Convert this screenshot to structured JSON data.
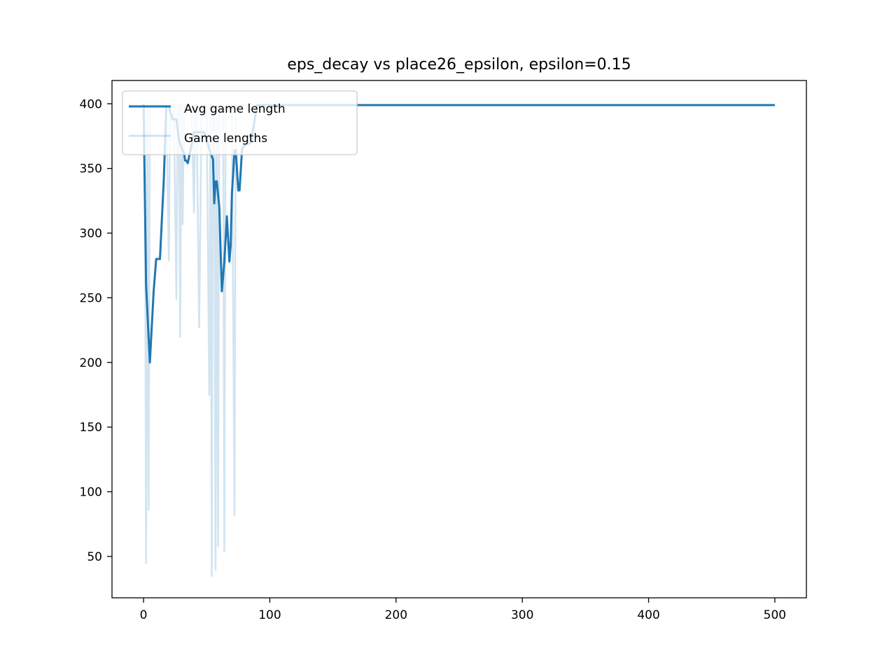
{
  "chart_data": {
    "type": "line",
    "title": "eps_decay vs place26_epsilon, epsilon=0.15",
    "xlabel": "",
    "ylabel": "",
    "xlim": [
      -25,
      525
    ],
    "ylim": [
      18,
      418
    ],
    "x_ticks": [
      0,
      100,
      200,
      300,
      400,
      500
    ],
    "y_ticks": [
      50,
      100,
      150,
      200,
      250,
      300,
      350,
      400
    ],
    "grid": false,
    "legend_position": "upper-left",
    "colors": {
      "avg": "#1f77b4",
      "lengths": "#1f77b4"
    },
    "series": [
      {
        "name": "Avg game length",
        "x": [
          0,
          2,
          5,
          8,
          10,
          13,
          16,
          18,
          20,
          23,
          26,
          28,
          30,
          32,
          33,
          34,
          35,
          38,
          40,
          42,
          45,
          48,
          50,
          53,
          55,
          56,
          57,
          58,
          60,
          62,
          64,
          66,
          68,
          69,
          70,
          72,
          73,
          75,
          76,
          78,
          80,
          85,
          90,
          500
        ],
        "values": [
          400,
          260,
          200,
          255,
          280,
          280,
          340,
          398,
          398,
          388,
          388,
          372,
          366,
          362,
          356,
          356,
          354,
          368,
          378,
          378,
          378,
          378,
          372,
          362,
          357,
          323,
          340,
          340,
          320,
          255,
          278,
          313,
          278,
          290,
          330,
          364,
          364,
          333,
          333,
          365,
          368,
          370,
          399,
          399
        ]
      },
      {
        "name": "Game lengths",
        "x": [
          0,
          1,
          2,
          3,
          4,
          5,
          6,
          7,
          8,
          10,
          12,
          14,
          16,
          18,
          20,
          21,
          22,
          24,
          26,
          27,
          28,
          29,
          30,
          31,
          32,
          33,
          34,
          36,
          38,
          40,
          41,
          42,
          44,
          46,
          47,
          48,
          50,
          52,
          53,
          54,
          55,
          56,
          57,
          58,
          59,
          60,
          61,
          62,
          63,
          64,
          65,
          66,
          67,
          68,
          70,
          72,
          73,
          74,
          75,
          76,
          77,
          78,
          80,
          85,
          90
        ],
        "values": [
          400,
          400,
          45,
          399,
          86,
          399,
          399,
          399,
          399,
          399,
          399,
          399,
          399,
          399,
          279,
          399,
          399,
          399,
          249,
          399,
          399,
          220,
          399,
          307,
          399,
          399,
          399,
          399,
          399,
          316,
          399,
          399,
          227,
          399,
          399,
          399,
          399,
          175,
          399,
          35,
          399,
          399,
          40,
          399,
          58,
          399,
          399,
          399,
          399,
          54,
          399,
          399,
          399,
          399,
          399,
          82,
          399,
          399,
          399,
          399,
          399,
          399,
          399,
          399,
          399
        ]
      }
    ]
  }
}
